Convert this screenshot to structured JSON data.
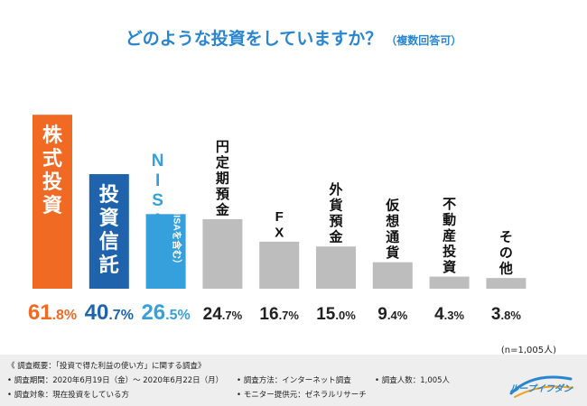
{
  "chart_data": {
    "type": "bar",
    "title": "どのような投資をしていますか？",
    "subtitle": "（複数回答可）",
    "ylim": [
      0,
      70
    ],
    "categories": [
      {
        "label": "株式投資",
        "sublabel": "",
        "value": 61.8,
        "num": "61",
        "dec": ".8",
        "pct": "%"
      },
      {
        "label": "投資信託",
        "sublabel": "",
        "value": 40.7,
        "num": "40",
        "dec": ".7",
        "pct": "%"
      },
      {
        "label": "NISA",
        "sublabel": "（つみたてNISAを含む）",
        "value": 26.5,
        "num": "26",
        "dec": ".5",
        "pct": "%"
      },
      {
        "label": "円定期預金",
        "sublabel": "",
        "value": 24.7,
        "num": "24",
        "dec": ".7",
        "pct": "%"
      },
      {
        "label": "FX",
        "sublabel": "",
        "value": 16.7,
        "num": "16",
        "dec": ".7",
        "pct": "%"
      },
      {
        "label": "外貨預金",
        "sublabel": "",
        "value": 15.0,
        "num": "15",
        "dec": ".0",
        "pct": "%"
      },
      {
        "label": "仮想通貨",
        "sublabel": "",
        "value": 9.4,
        "num": "9",
        "dec": ".4",
        "pct": "%"
      },
      {
        "label": "不動産投資",
        "sublabel": "",
        "value": 4.3,
        "num": "4",
        "dec": ".3",
        "pct": "%"
      },
      {
        "label": "その他",
        "sublabel": "",
        "value": 3.8,
        "num": "3",
        "dec": ".8",
        "pct": "%"
      }
    ],
    "colors": {
      "first": "#f06a24",
      "second": "#1f63ad",
      "third": "#35a0db",
      "rest": "#bdbdbd",
      "rest_value": "#222222",
      "title": "#2a85cf"
    },
    "sample_size": "(n=1,005人)"
  },
  "footer": {
    "overview": "《 調査概要：「投資で得た利益の使い方」に関する調査》",
    "period": "• 調査期間：2020年6月19日（金）～ 2020年6月22日（月）",
    "target": "• 調査対象：現在投資をしている方",
    "method": "• 調査方法：インターネット調査",
    "provider": "• モニター提供元：ゼネラルリサーチ",
    "count": "• 調査人数：1,005人"
  },
  "logo": {
    "text": "ループイフダン"
  }
}
